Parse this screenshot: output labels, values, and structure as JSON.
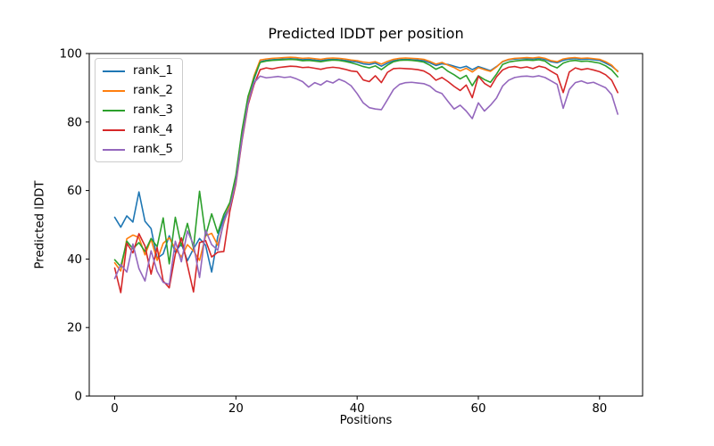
{
  "chart_data": {
    "type": "line",
    "title": "Predicted lDDT per position",
    "xlabel": "Positions",
    "ylabel": "Predicted lDDT",
    "xlim": [
      -4.2,
      87.1
    ],
    "ylim": [
      0,
      100
    ],
    "xticks": [
      0,
      20,
      40,
      60,
      80
    ],
    "yticks": [
      0,
      20,
      40,
      60,
      80,
      100
    ],
    "grid": false,
    "legend_position": "upper left",
    "x": [
      0,
      1,
      2,
      3,
      4,
      5,
      6,
      7,
      8,
      9,
      10,
      11,
      12,
      13,
      14,
      15,
      16,
      17,
      18,
      19,
      20,
      21,
      22,
      23,
      24,
      25,
      26,
      27,
      28,
      29,
      30,
      31,
      32,
      33,
      34,
      35,
      36,
      37,
      38,
      39,
      40,
      41,
      42,
      43,
      44,
      45,
      46,
      47,
      48,
      49,
      50,
      51,
      52,
      53,
      54,
      55,
      56,
      57,
      58,
      59,
      60,
      61,
      62,
      63,
      64,
      65,
      66,
      67,
      68,
      69,
      70,
      71,
      72,
      73,
      74,
      75,
      76,
      77,
      78,
      79,
      80,
      81,
      82,
      83
    ],
    "series": [
      {
        "name": "rank_1",
        "color": "#1f77b4",
        "values": [
          52.2,
          49.3,
          52.6,
          50.8,
          59.6,
          51.0,
          48.9,
          40.2,
          41.5,
          46.8,
          42.0,
          44.5,
          39.5,
          43.0,
          46.0,
          44.0,
          36.2,
          46.5,
          52.0,
          55.5,
          63.0,
          76.0,
          86.0,
          92.5,
          97.6,
          98.0,
          98.2,
          98.3,
          98.4,
          98.5,
          98.4,
          98.2,
          98.3,
          98.1,
          97.9,
          98.2,
          98.3,
          98.2,
          98.0,
          97.7,
          97.5,
          97.0,
          96.8,
          97.2,
          96.3,
          97.2,
          97.9,
          98.2,
          98.3,
          98.2,
          98.1,
          97.9,
          97.3,
          96.5,
          97.0,
          96.8,
          96.3,
          95.8,
          96.3,
          95.3,
          96.2,
          95.6,
          95.0,
          96.2,
          97.6,
          98.2,
          98.4,
          98.5,
          98.5,
          98.4,
          98.6,
          98.3,
          97.6,
          97.3,
          98.0,
          98.4,
          98.5,
          98.3,
          98.4,
          98.2,
          98.0,
          97.2,
          96.3,
          94.9
        ]
      },
      {
        "name": "rank_2",
        "color": "#ff7f0e",
        "values": [
          38.9,
          36.5,
          45.9,
          47.0,
          46.3,
          41.2,
          45.8,
          39.6,
          44.6,
          46.2,
          43.0,
          40.6,
          44.2,
          42.4,
          39.6,
          46.8,
          47.5,
          44.0,
          50.5,
          56.0,
          64.0,
          77.0,
          87.0,
          93.5,
          98.1,
          98.4,
          98.6,
          98.7,
          98.8,
          98.9,
          98.8,
          98.6,
          98.7,
          98.5,
          98.3,
          98.6,
          98.7,
          98.6,
          98.4,
          98.1,
          97.9,
          97.5,
          97.3,
          97.6,
          96.9,
          97.7,
          98.3,
          98.6,
          98.7,
          98.6,
          98.5,
          98.3,
          97.7,
          96.9,
          97.4,
          96.6,
          95.9,
          94.9,
          95.7,
          94.6,
          95.9,
          95.3,
          94.8,
          96.1,
          97.7,
          98.3,
          98.6,
          98.7,
          98.8,
          98.7,
          98.9,
          98.6,
          97.9,
          97.6,
          98.4,
          98.7,
          98.8,
          98.6,
          98.7,
          98.5,
          98.3,
          97.6,
          96.6,
          94.7
        ]
      },
      {
        "name": "rank_3",
        "color": "#2ca02c",
        "values": [
          39.8,
          37.8,
          45.2,
          43.0,
          44.8,
          42.2,
          46.0,
          43.6,
          52.0,
          38.6,
          52.2,
          43.8,
          50.4,
          43.2,
          59.8,
          46.8,
          53.2,
          47.6,
          53.0,
          56.5,
          64.5,
          77.5,
          87.5,
          93.0,
          97.4,
          97.8,
          98.0,
          98.1,
          98.2,
          98.3,
          98.2,
          97.9,
          98.0,
          97.8,
          97.6,
          97.9,
          98.1,
          98.0,
          97.7,
          97.3,
          96.8,
          96.2,
          95.8,
          96.4,
          95.3,
          96.6,
          97.6,
          98.0,
          98.1,
          98.0,
          97.8,
          97.5,
          96.6,
          95.4,
          96.2,
          94.8,
          93.8,
          92.6,
          93.6,
          90.6,
          93.5,
          92.4,
          91.6,
          94.0,
          96.8,
          97.5,
          97.8,
          98.0,
          98.1,
          98.0,
          98.2,
          97.8,
          96.5,
          95.8,
          97.2,
          97.8,
          98.0,
          97.7,
          97.8,
          97.5,
          97.2,
          96.4,
          95.2,
          93.2
        ]
      },
      {
        "name": "rank_4",
        "color": "#d62728",
        "values": [
          37.4,
          30.2,
          44.6,
          41.8,
          47.4,
          43.8,
          35.6,
          43.4,
          33.6,
          31.6,
          41.4,
          46.2,
          38.2,
          30.4,
          44.8,
          45.4,
          40.6,
          42.0,
          42.2,
          54.0,
          62.0,
          74.5,
          85.0,
          91.0,
          95.3,
          95.8,
          95.5,
          95.9,
          96.1,
          96.3,
          96.2,
          95.9,
          96.0,
          95.7,
          95.4,
          95.8,
          96.0,
          95.8,
          95.4,
          94.9,
          94.7,
          92.3,
          91.8,
          93.5,
          91.5,
          94.5,
          95.6,
          95.7,
          95.6,
          95.5,
          95.3,
          94.9,
          93.9,
          92.2,
          93.0,
          91.8,
          90.4,
          89.2,
          90.8,
          87.1,
          93.4,
          91.3,
          90.2,
          93.2,
          95.2,
          96.0,
          96.2,
          95.8,
          96.1,
          95.6,
          96.3,
          95.9,
          94.8,
          93.8,
          88.6,
          94.6,
          95.8,
          95.3,
          95.6,
          95.2,
          94.7,
          93.8,
          92.2,
          88.6
        ]
      },
      {
        "name": "rank_5",
        "color": "#9467bd",
        "values": [
          34.3,
          38.4,
          36.2,
          44.4,
          37.2,
          33.6,
          42.4,
          36.4,
          33.2,
          32.6,
          45.2,
          39.2,
          48.2,
          44.2,
          34.6,
          48.4,
          44.2,
          42.6,
          51.0,
          55.0,
          62.5,
          75.0,
          85.5,
          91.5,
          93.4,
          92.9,
          93.1,
          93.3,
          93.0,
          93.2,
          92.6,
          91.8,
          90.2,
          91.5,
          90.8,
          92.0,
          91.4,
          92.5,
          91.8,
          90.6,
          88.3,
          85.6,
          84.2,
          83.8,
          83.6,
          86.5,
          89.5,
          91.0,
          91.5,
          91.6,
          91.4,
          91.2,
          90.5,
          89.0,
          88.3,
          86.0,
          83.8,
          84.9,
          83.2,
          81.0,
          85.6,
          83.2,
          84.9,
          87.0,
          90.5,
          92.2,
          93.0,
          93.3,
          93.4,
          93.2,
          93.5,
          93.0,
          92.0,
          91.0,
          84.0,
          89.5,
          91.5,
          92.0,
          91.3,
          91.6,
          90.8,
          90.0,
          88.0,
          82.3
        ]
      }
    ]
  },
  "style": {
    "background_color": "#ffffff",
    "spine_color": "#000000",
    "text_color": "#000000",
    "legend_border_color": "#cccccc"
  }
}
